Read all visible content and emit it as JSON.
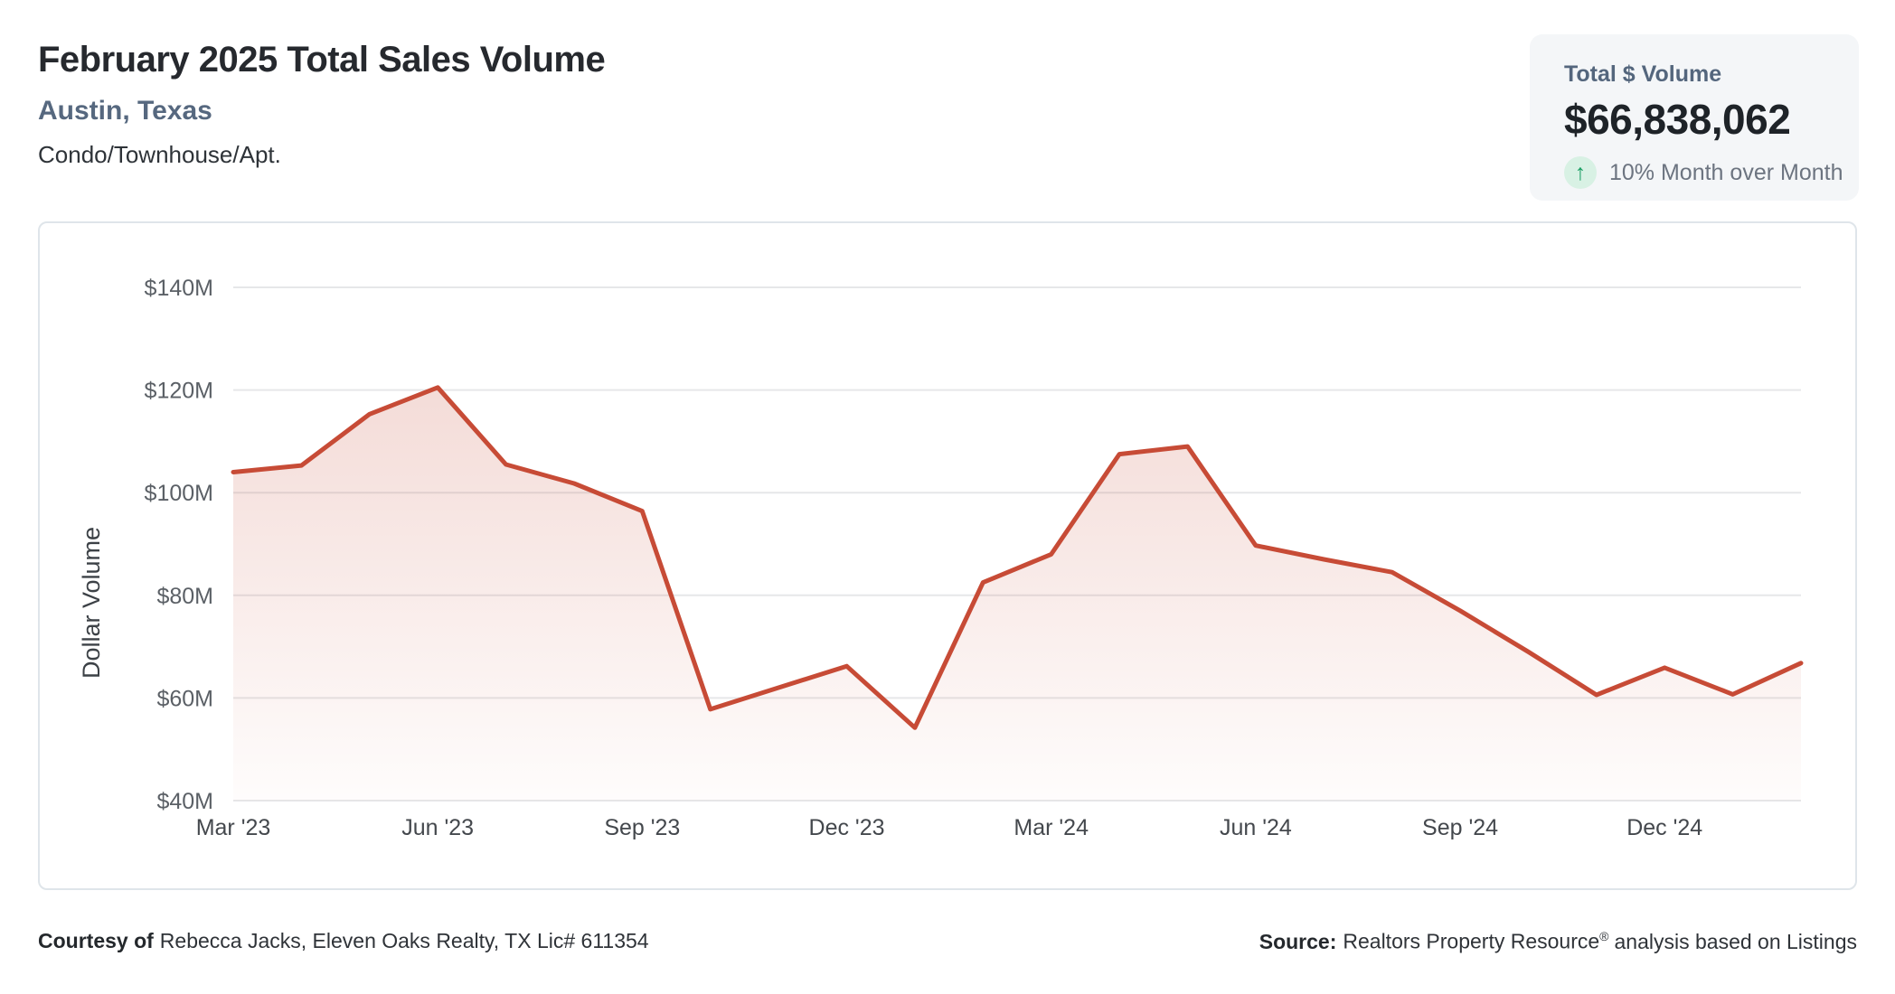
{
  "header": {
    "title": "February 2025 Total Sales Volume",
    "subtitle": "Austin, Texas",
    "property_type": "Condo/Townhouse/Apt."
  },
  "stat_card": {
    "label": "Total $ Volume",
    "value": "$66,838,062",
    "arrow_icon": "up-arrow",
    "arrow_glyph": "↑",
    "mom_text": "10% Month over Month",
    "arrow_color": "#1a9f63",
    "arrow_bg": "#d8f1e4",
    "card_bg": "#f4f6f8"
  },
  "chart_data": {
    "type": "area",
    "title": "February 2025 Total Sales Volume",
    "xlabel": "",
    "ylabel": "Dollar Volume",
    "x": [
      "Mar '23",
      "Apr '23",
      "May '23",
      "Jun '23",
      "Jul '23",
      "Aug '23",
      "Sep '23",
      "Oct '23",
      "Nov '23",
      "Dec '23",
      "Jan '24",
      "Feb '24",
      "Mar '24",
      "Apr '24",
      "May '24",
      "Jun '24",
      "Jul '24",
      "Aug '24",
      "Sep '24",
      "Oct '24",
      "Nov '24",
      "Dec '24",
      "Jan '25",
      "Feb '25"
    ],
    "values": [
      104.0,
      105.3,
      115.3,
      120.5,
      105.5,
      101.8,
      96.4,
      57.8,
      62.0,
      66.2,
      54.2,
      82.5,
      88.0,
      107.5,
      109.0,
      89.7,
      87.0,
      84.5,
      77.0,
      69.0,
      60.6,
      65.9,
      60.7,
      66.8
    ],
    "unit": "$M",
    "x_ticks": [
      "Mar '23",
      "Jun '23",
      "Sep '23",
      "Dec '23",
      "Mar '24",
      "Jun '24",
      "Sep '24",
      "Dec '24"
    ],
    "x_tick_step": 3,
    "y_ticks": [
      {
        "value": 40,
        "label": "$40M"
      },
      {
        "value": 60,
        "label": "$60M"
      },
      {
        "value": 80,
        "label": "$80M"
      },
      {
        "value": 100,
        "label": "$100M"
      },
      {
        "value": 120,
        "label": "$120M"
      },
      {
        "value": 140,
        "label": "$140M"
      }
    ],
    "ylim": [
      40,
      140
    ],
    "grid": true,
    "legend": false,
    "line_color": "#c74b36",
    "fill_top_opacity": 0.24,
    "fill_bottom_opacity": 0.015,
    "grid_color": "#e6e7e9",
    "tick_color_y": "#5b6066",
    "tick_color_x": "#44484d",
    "axis_title_color": "#3c4146"
  },
  "footer": {
    "courtesy_label": "Courtesy of",
    "courtesy_text": "Rebecca Jacks, Eleven Oaks Realty, TX Lic# 611354",
    "source_label": "Source:",
    "source_pre": "Realtors Property Resource",
    "source_sup": "®",
    "source_post": "analysis based on Listings"
  }
}
